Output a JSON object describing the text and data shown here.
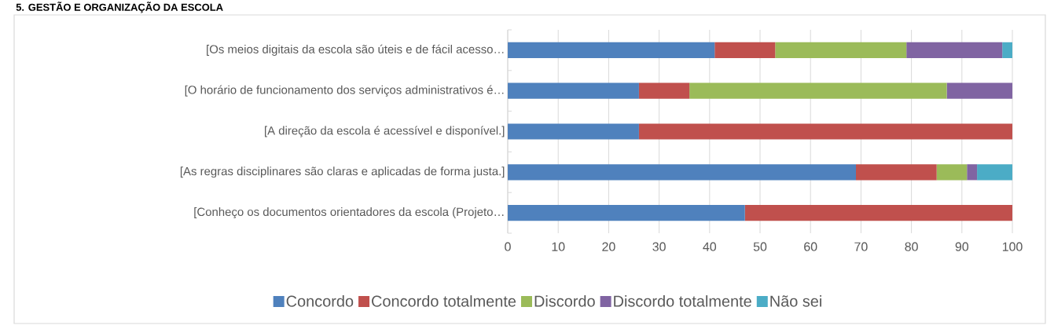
{
  "chart_data": {
    "type": "bar",
    "orientation": "horizontal",
    "stacked": true,
    "title": "5. GESTÃO E ORGANIZAÇÃO DA ESCOLA",
    "categories": [
      "[Os meios digitais da escola são úteis e de fácil acesso…",
      "[O horário de funcionamento dos serviços administrativos é…",
      "[A direção da escola é acessível e disponível.]",
      "[As regras disciplinares são claras e aplicadas de forma justa.]",
      "[Conheço os documentos orientadores da escola (Projeto…"
    ],
    "series": [
      {
        "name": "Concordo",
        "color": "#4f81bd",
        "values": [
          41,
          26,
          26,
          69,
          47
        ]
      },
      {
        "name": "Concordo totalmente",
        "color": "#c0504d",
        "values": [
          12,
          10,
          74,
          16,
          53
        ]
      },
      {
        "name": "Discordo",
        "color": "#9bbb59",
        "values": [
          26,
          51,
          0,
          6,
          0
        ]
      },
      {
        "name": "Discordo totalmente",
        "color": "#8064a2",
        "values": [
          19,
          13,
          0,
          2,
          0
        ]
      },
      {
        "name": "Não sei",
        "color": "#4bacc6",
        "values": [
          2,
          0,
          0,
          7,
          0
        ]
      }
    ],
    "xlim": [
      0,
      100
    ],
    "xticks": [
      0,
      10,
      20,
      30,
      40,
      50,
      60,
      70,
      80,
      90,
      100
    ],
    "grid": "x",
    "legend": "bottom"
  }
}
